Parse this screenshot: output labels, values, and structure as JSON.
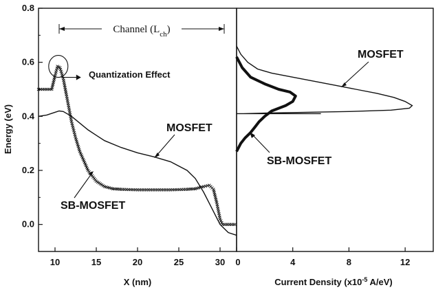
{
  "chart_data": [
    {
      "type": "line",
      "title": "",
      "xlabel": "X (nm)",
      "ylabel": "Energy (eV)",
      "xlim": [
        8,
        32
      ],
      "ylim": [
        -0.1,
        0.8
      ],
      "xticks": [
        "10",
        "15",
        "20",
        "25",
        "30"
      ],
      "yticks": [
        "0.8",
        "0.6",
        "0.4",
        "0.2",
        "0.0"
      ],
      "grid": false,
      "series": [
        {
          "name": "MOSFET",
          "style": "solid",
          "x": [
            8.0,
            9.0,
            10.0,
            10.5,
            11.0,
            12.0,
            13.0,
            14.0,
            15.0,
            16.0,
            18.0,
            20.0,
            22.0,
            24.0,
            26.0,
            27.0,
            28.0,
            29.0,
            30.0,
            30.5,
            31.0,
            32.0
          ],
          "y": [
            0.4,
            0.405,
            0.415,
            0.42,
            0.418,
            0.4,
            0.375,
            0.35,
            0.33,
            0.31,
            0.285,
            0.265,
            0.25,
            0.232,
            0.2,
            0.17,
            0.12,
            0.06,
            0.0,
            -0.015,
            -0.03,
            -0.04
          ]
        },
        {
          "name": "SB-MOSFET",
          "style": "markers",
          "x": [
            8.0,
            9.6,
            10.0,
            10.3,
            10.6,
            11.0,
            11.5,
            12.0,
            12.5,
            13.0,
            14.0,
            15.0,
            16.0,
            17.0,
            18.0,
            20.0,
            22.0,
            24.0,
            26.0,
            27.0,
            28.0,
            28.7,
            29.2,
            29.6,
            30.0,
            30.3,
            32.0
          ],
          "y": [
            0.5,
            0.5,
            0.55,
            0.585,
            0.58,
            0.54,
            0.46,
            0.38,
            0.32,
            0.27,
            0.2,
            0.16,
            0.14,
            0.132,
            0.13,
            0.128,
            0.128,
            0.128,
            0.13,
            0.132,
            0.14,
            0.145,
            0.13,
            0.08,
            0.02,
            0.0,
            0.0
          ]
        }
      ],
      "annotations": {
        "channel": "Channel (L",
        "channel_sub": "ch",
        "channel_close": ")",
        "quantization": "Quantization Effect",
        "mosfet_label": "MOSFET",
        "sb_label": "SB-MOSFET",
        "channel_start_x": 10.5,
        "channel_end_x": 30.5,
        "circle_x": 10.4,
        "circle_y": 0.585
      }
    },
    {
      "type": "line",
      "title": "",
      "xlabel": "Current Density (x10",
      "xlabel_sup": "-5",
      "xlabel_end": " A/eV)",
      "ylabel": "",
      "xlim": [
        0,
        14
      ],
      "ylim": [
        -0.1,
        0.8
      ],
      "xticks": [
        "0",
        "4",
        "8",
        "12"
      ],
      "grid": false,
      "series": [
        {
          "name": "MOSFET",
          "style": "solid",
          "x": [
            0.0,
            0.3,
            0.8,
            1.5,
            2.5,
            4.0,
            5.5,
            7.0,
            8.5,
            10.0,
            11.2,
            12.0,
            12.5,
            12.3,
            11.0,
            8.0,
            5.0,
            2.0,
            0.5,
            0.0,
            6.0
          ],
          "y": [
            0.66,
            0.63,
            0.6,
            0.575,
            0.56,
            0.545,
            0.53,
            0.515,
            0.5,
            0.485,
            0.47,
            0.455,
            0.44,
            0.43,
            0.423,
            0.418,
            0.415,
            0.412,
            0.41,
            0.41,
            0.41
          ]
        },
        {
          "name": "SB-MOSFET",
          "style": "thick",
          "x": [
            0.0,
            0.4,
            1.0,
            2.0,
            3.0,
            3.8,
            4.2,
            4.0,
            3.5,
            2.5,
            2.0,
            1.6,
            1.3,
            1.0,
            0.6,
            0.3,
            0.0
          ],
          "y": [
            0.62,
            0.58,
            0.545,
            0.52,
            0.5,
            0.49,
            0.475,
            0.455,
            0.44,
            0.42,
            0.4,
            0.38,
            0.36,
            0.34,
            0.32,
            0.3,
            0.27
          ]
        }
      ],
      "annotations": {
        "mosfet_label": "MOSFET",
        "sb_label": "SB-MOSFET"
      }
    }
  ]
}
